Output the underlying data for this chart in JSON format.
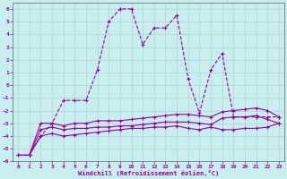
{
  "xlabel": "Windchill (Refroidissement éolien,°C)",
  "background_color": "#c8eef0",
  "line_color": "#990099",
  "xlim": [
    -0.5,
    23.5
  ],
  "ylim": [
    -6,
    6.5
  ],
  "xticks": [
    0,
    1,
    2,
    3,
    4,
    5,
    6,
    7,
    8,
    9,
    10,
    11,
    12,
    13,
    14,
    15,
    16,
    17,
    18,
    19,
    20,
    21,
    22,
    23
  ],
  "yticks": [
    -6,
    -5,
    -4,
    -3,
    -2,
    -1,
    0,
    1,
    2,
    3,
    4,
    5,
    6
  ],
  "lines": {
    "dotted": {
      "x": [
        0,
        1,
        2,
        3,
        4,
        5,
        6,
        7,
        8,
        9,
        10,
        11,
        12,
        13,
        14,
        15,
        16,
        17,
        18,
        19,
        20,
        21,
        22,
        23
      ],
      "y": [
        -5.5,
        -5.5,
        -4.0,
        -3.0,
        -1.2,
        -1.2,
        -1.2,
        1.2,
        5.0,
        6.0,
        6.0,
        3.2,
        4.5,
        4.5,
        5.5,
        0.5,
        -2.2,
        1.2,
        2.5,
        -2.5,
        -2.5,
        -2.5,
        -2.5,
        -2.5
      ]
    },
    "solid1": {
      "x": [
        1,
        2,
        3,
        4,
        5,
        6,
        7,
        8,
        9,
        10,
        11,
        12,
        13,
        14,
        15,
        16,
        17,
        18,
        19,
        20,
        21,
        22,
        23
      ],
      "y": [
        -5.5,
        -3.0,
        -3.0,
        -3.2,
        -3.0,
        -3.0,
        -2.8,
        -2.8,
        -2.8,
        -2.7,
        -2.6,
        -2.5,
        -2.4,
        -2.3,
        -2.3,
        -2.4,
        -2.5,
        -2.1,
        -2.0,
        -1.9,
        -1.8,
        -2.0,
        -2.5
      ]
    },
    "solid2": {
      "x": [
        1,
        2,
        3,
        4,
        5,
        6,
        7,
        8,
        9,
        10,
        11,
        12,
        13,
        14,
        15,
        16,
        17,
        18,
        19,
        20,
        21,
        22,
        23
      ],
      "y": [
        -5.5,
        -3.5,
        -3.3,
        -3.5,
        -3.4,
        -3.4,
        -3.3,
        -3.3,
        -3.2,
        -3.2,
        -3.1,
        -3.0,
        -2.9,
        -2.9,
        -2.9,
        -3.0,
        -3.1,
        -2.6,
        -2.5,
        -2.5,
        -2.4,
        -2.7,
        -3.0
      ]
    },
    "solid3": {
      "x": [
        0,
        1,
        2,
        3,
        4,
        5,
        6,
        7,
        8,
        9,
        10,
        11,
        12,
        13,
        14,
        15,
        16,
        17,
        18,
        19,
        20,
        21,
        22,
        23
      ],
      "y": [
        -5.5,
        -5.5,
        -4.0,
        -3.8,
        -4.0,
        -3.9,
        -3.8,
        -3.7,
        -3.6,
        -3.5,
        -3.4,
        -3.4,
        -3.3,
        -3.3,
        -3.2,
        -3.4,
        -3.5,
        -3.3,
        -3.5,
        -3.5,
        -3.4,
        -3.4,
        -3.3,
        -3.0
      ]
    }
  }
}
